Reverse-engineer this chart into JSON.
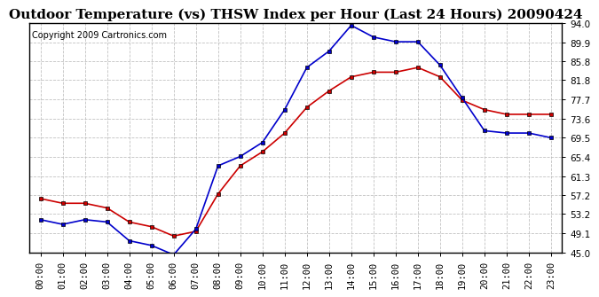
{
  "title": "Outdoor Temperature (vs) THSW Index per Hour (Last 24 Hours) 20090424",
  "copyright": "Copyright 2009 Cartronics.com",
  "hours": [
    "00:00",
    "01:00",
    "02:00",
    "03:00",
    "04:00",
    "05:00",
    "06:00",
    "07:00",
    "08:00",
    "09:00",
    "10:00",
    "11:00",
    "12:00",
    "13:00",
    "14:00",
    "15:00",
    "16:00",
    "17:00",
    "18:00",
    "19:00",
    "20:00",
    "21:00",
    "22:00",
    "23:00"
  ],
  "temp": [
    56.5,
    55.5,
    55.5,
    54.5,
    51.5,
    50.5,
    48.5,
    49.5,
    57.5,
    63.5,
    66.5,
    70.5,
    76.0,
    79.5,
    82.5,
    83.5,
    83.5,
    84.5,
    82.5,
    77.5,
    75.5,
    74.5,
    74.5,
    74.5
  ],
  "thsw": [
    52.0,
    51.0,
    52.0,
    51.5,
    47.5,
    46.5,
    44.5,
    50.0,
    63.5,
    65.5,
    68.5,
    75.5,
    84.5,
    88.0,
    93.5,
    91.0,
    90.0,
    90.0,
    85.0,
    78.0,
    71.0,
    70.5,
    70.5,
    69.5
  ],
  "temp_color": "#cc0000",
  "thsw_color": "#0000cc",
  "ylim": [
    45.0,
    94.0
  ],
  "yticks": [
    45.0,
    49.1,
    53.2,
    57.2,
    61.3,
    65.4,
    69.5,
    73.6,
    77.7,
    81.8,
    85.8,
    89.9,
    94.0
  ],
  "background_color": "#ffffff",
  "grid_color": "#bbbbbb",
  "title_fontsize": 11,
  "copyright_fontsize": 7,
  "tick_fontsize": 7.5,
  "marker": "s",
  "marker_size": 3,
  "linewidth": 1.2
}
